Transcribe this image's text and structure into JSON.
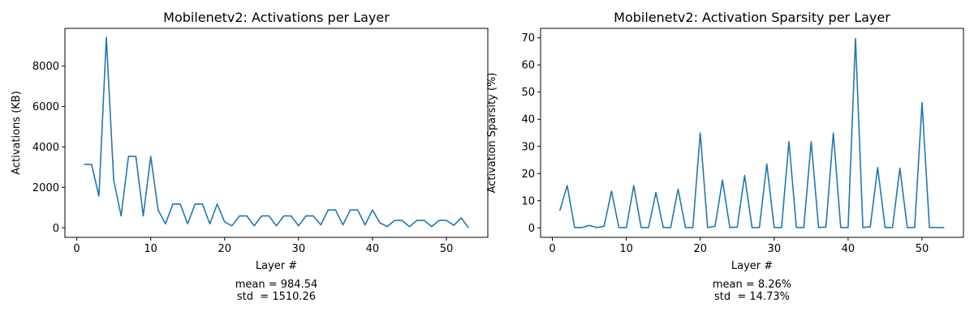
{
  "chart_data": [
    {
      "type": "line",
      "title": "Mobilenetv2: Activations per Layer",
      "xlabel": "Layer #",
      "ylabel": "Activations (KB)",
      "xlim": [
        -1.6,
        55.6
      ],
      "ylim": [
        -470,
        9860
      ],
      "xticks": [
        0,
        10,
        20,
        30,
        40,
        50
      ],
      "yticks": [
        0,
        2000,
        4000,
        6000,
        8000
      ],
      "grid": false,
      "color": "#1f77b4",
      "stats": [
        "mean = 984.54",
        "std  = 1510.26"
      ],
      "x": [
        1,
        2,
        3,
        4,
        5,
        6,
        7,
        8,
        9,
        10,
        11,
        12,
        13,
        14,
        15,
        16,
        17,
        18,
        19,
        20,
        21,
        22,
        23,
        24,
        25,
        26,
        27,
        28,
        29,
        30,
        31,
        32,
        33,
        34,
        35,
        36,
        37,
        38,
        39,
        40,
        41,
        42,
        43,
        44,
        45,
        46,
        47,
        48,
        49,
        50,
        51,
        52,
        53
      ],
      "values": [
        3136,
        3136,
        1568,
        9408,
        2352,
        588,
        3528,
        3528,
        588,
        3528,
        882,
        196,
        1176,
        1176,
        196,
        1176,
        1176,
        196,
        1176,
        294,
        98,
        588,
        588,
        98,
        588,
        588,
        98,
        588,
        588,
        98,
        588,
        588,
        147,
        882,
        882,
        147,
        882,
        882,
        147,
        882,
        245,
        61,
        368,
        368,
        61,
        368,
        368,
        61,
        368,
        368,
        123,
        490,
        0
      ]
    },
    {
      "type": "line",
      "title": "Mobilenetv2: Activation Sparsity per Layer",
      "xlabel": "Layer #",
      "ylabel": "Activation Sparsity (%)",
      "xlim": [
        -1.6,
        55.6
      ],
      "ylim": [
        -3.5,
        73.5
      ],
      "xticks": [
        0,
        10,
        20,
        30,
        40,
        50
      ],
      "yticks": [
        0,
        10,
        20,
        30,
        40,
        50,
        60,
        70
      ],
      "grid": false,
      "color": "#1f77b4",
      "stats": [
        "mean = 8.26%",
        "std  = 14.73%"
      ],
      "x": [
        1,
        2,
        3,
        4,
        5,
        6,
        7,
        8,
        9,
        10,
        11,
        12,
        13,
        14,
        15,
        16,
        17,
        18,
        19,
        20,
        21,
        22,
        23,
        24,
        25,
        26,
        27,
        28,
        29,
        30,
        31,
        32,
        33,
        34,
        35,
        36,
        37,
        38,
        39,
        40,
        41,
        42,
        43,
        44,
        45,
        46,
        47,
        48,
        49,
        50,
        51,
        52,
        53
      ],
      "values": [
        6.3,
        15.6,
        0.1,
        0.1,
        0.9,
        0.1,
        0.6,
        13.5,
        0.1,
        0.1,
        15.6,
        0.1,
        0.1,
        13.0,
        0.1,
        0.1,
        14.3,
        0.1,
        0.1,
        35.0,
        0.1,
        0.6,
        17.6,
        0.1,
        0.3,
        19.3,
        0.1,
        0.1,
        23.5,
        0.1,
        0.1,
        31.8,
        0.1,
        0.1,
        31.8,
        0.1,
        0.3,
        35.0,
        0.1,
        0.1,
        69.8,
        0.1,
        0.4,
        22.2,
        0.1,
        0.1,
        22.0,
        0.1,
        0.1,
        46.2,
        0.1,
        0.1,
        0.1
      ]
    }
  ]
}
